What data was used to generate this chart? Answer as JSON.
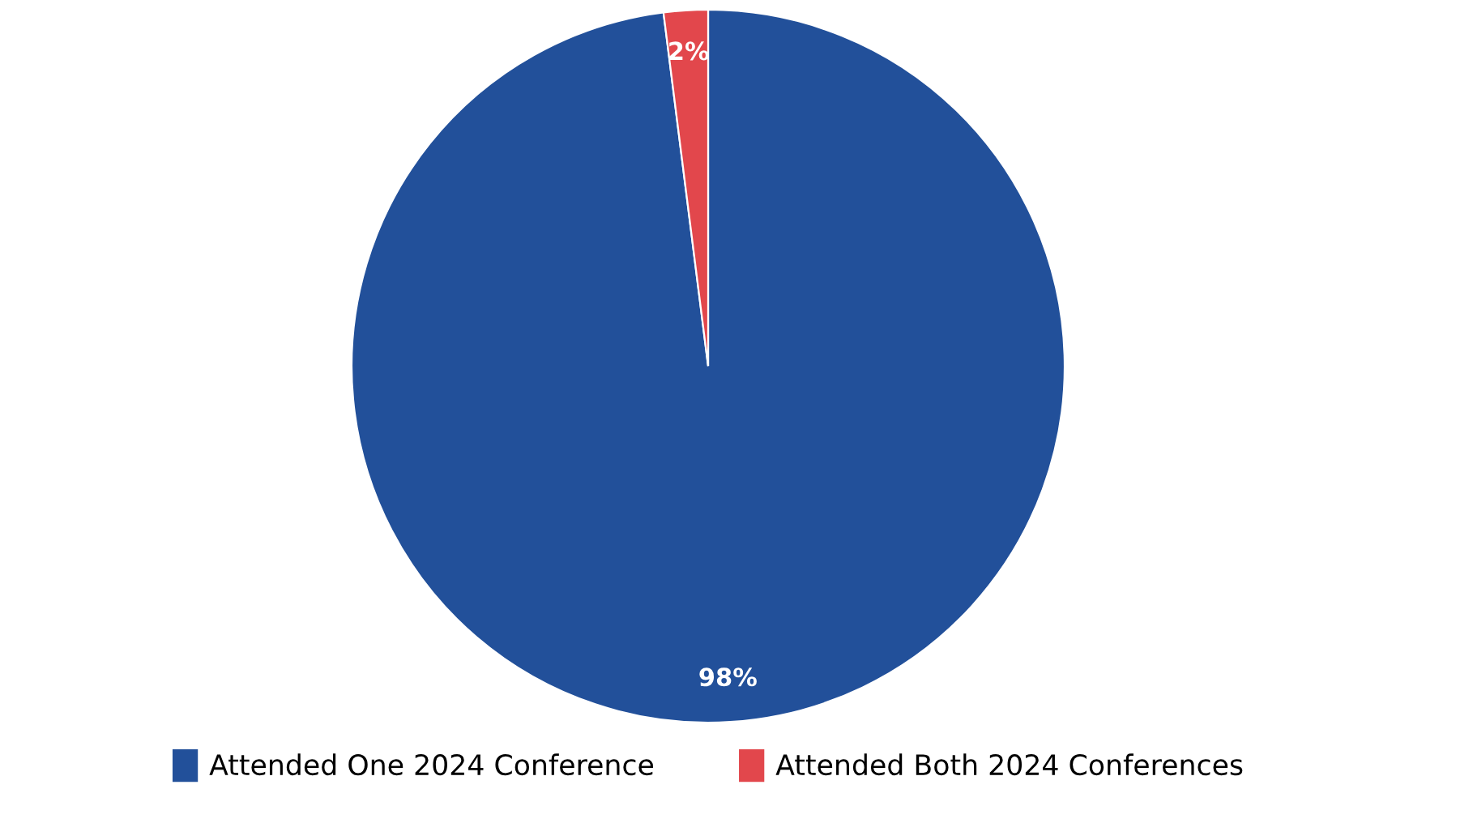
{
  "chart_data": {
    "type": "pie",
    "categories": [
      "Attended One 2024 Conference",
      "Attended Both 2024 Conferences"
    ],
    "values": [
      98,
      2
    ],
    "colors": [
      "#22509a",
      "#e2474c"
    ],
    "value_labels": [
      "98%",
      "2%"
    ],
    "legend": "bottom"
  }
}
